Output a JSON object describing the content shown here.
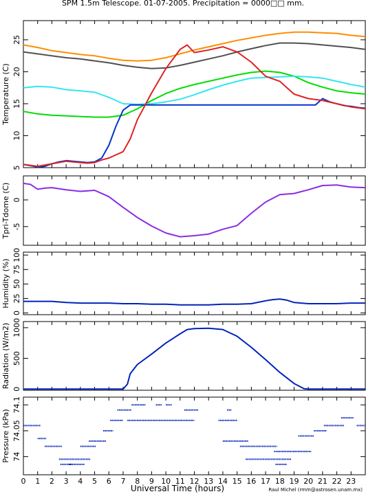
{
  "title": "SPM 1.5m Telescope. 01-07-2005. Precipitation = 0000□□ mm.",
  "credit": "Raul Michel (rmm@astrosen.unam.mx)",
  "xaxis": {
    "label": "Universal Time (hours)",
    "range": [
      0,
      24
    ],
    "ticks": [
      0,
      1,
      2,
      3,
      4,
      5,
      6,
      7,
      8,
      9,
      10,
      11,
      12,
      13,
      14,
      15,
      16,
      17,
      18,
      19,
      20,
      21,
      22,
      23
    ]
  },
  "chart_data": [
    {
      "type": "line",
      "ylabel": "Temperature (C)",
      "ylim": [
        5,
        28
      ],
      "yticks": [
        5,
        10,
        15,
        20,
        25
      ],
      "series": [
        {
          "color": "#ff8c00",
          "x": [
            0,
            1,
            2,
            3,
            4,
            5,
            6,
            7,
            8,
            9,
            10,
            11,
            12,
            13,
            14,
            15,
            16,
            17,
            18,
            19,
            20,
            21,
            22,
            23,
            24
          ],
          "y": [
            24.2,
            23.8,
            23.3,
            23.0,
            22.7,
            22.5,
            22.1,
            21.8,
            21.7,
            21.8,
            22.2,
            22.8,
            23.4,
            23.9,
            24.4,
            24.9,
            25.3,
            25.7,
            26.0,
            26.2,
            26.2,
            26.1,
            26.0,
            25.7,
            25.5
          ]
        },
        {
          "color": "#505050",
          "x": [
            0,
            1,
            2,
            3,
            4,
            5,
            6,
            7,
            8,
            9,
            10,
            11,
            12,
            13,
            14,
            15,
            16,
            17,
            18,
            19,
            20,
            21,
            22,
            23,
            24
          ],
          "y": [
            23.1,
            22.8,
            22.5,
            22.2,
            22.0,
            21.7,
            21.4,
            21.0,
            20.7,
            20.5,
            20.6,
            21.0,
            21.5,
            22.0,
            22.5,
            23.1,
            23.6,
            24.1,
            24.5,
            24.5,
            24.4,
            24.2,
            24.0,
            23.8,
            23.5
          ]
        },
        {
          "color": "#00dd00",
          "x": [
            0,
            1,
            2,
            3,
            4,
            5,
            6,
            7,
            8,
            9,
            10,
            11,
            12,
            13,
            14,
            15,
            16,
            17,
            18,
            19,
            20,
            21,
            22,
            23,
            24
          ],
          "y": [
            13.8,
            13.4,
            13.2,
            13.1,
            13.0,
            12.9,
            12.9,
            13.2,
            14.2,
            15.5,
            16.6,
            17.4,
            18.0,
            18.5,
            19.0,
            19.5,
            19.9,
            20.1,
            19.9,
            19.3,
            18.3,
            17.6,
            17.0,
            16.7,
            16.5
          ]
        },
        {
          "color": "#33e5f0",
          "x": [
            0,
            1,
            2,
            3,
            4,
            5,
            6,
            7,
            8,
            9,
            10,
            11,
            12,
            13,
            14,
            15,
            16,
            17,
            18,
            19,
            20,
            21,
            22,
            23,
            24
          ],
          "y": [
            17.5,
            17.7,
            17.6,
            17.2,
            17.0,
            16.8,
            16.0,
            15.0,
            14.9,
            15.0,
            15.3,
            15.7,
            16.4,
            17.2,
            17.9,
            18.5,
            19.0,
            19.1,
            19.2,
            19.3,
            19.2,
            19.0,
            18.5,
            18.0,
            17.6
          ]
        },
        {
          "color": "#0033cc",
          "x": [
            0,
            0.5,
            1,
            1.5,
            2,
            2.5,
            3,
            3.5,
            4,
            4.5,
            5,
            5.5,
            6,
            6.5,
            7,
            7.5,
            20.5,
            21,
            21.5,
            22,
            22.5,
            23,
            23.5,
            24
          ],
          "y": [
            5.5,
            5.3,
            5.1,
            5.2,
            5.6,
            5.9,
            6.1,
            6.0,
            5.9,
            5.8,
            5.9,
            6.5,
            8.5,
            11.5,
            14.0,
            14.8,
            14.8,
            15.8,
            15.3,
            15.0,
            14.7,
            14.6,
            14.4,
            14.3
          ]
        },
        {
          "color": "#dd2222",
          "x": [
            0,
            1,
            2,
            3,
            4,
            4.5,
            5,
            5.5,
            6,
            7,
            7.5,
            8,
            9,
            10,
            11,
            11.5,
            12,
            13,
            14,
            15,
            16,
            17,
            18,
            18.5,
            19,
            20,
            21,
            22,
            23,
            24
          ],
          "y": [
            5.5,
            5.2,
            5.6,
            6.0,
            5.8,
            5.7,
            5.8,
            6.2,
            6.5,
            7.5,
            9.5,
            12.5,
            16.7,
            20.5,
            23.5,
            24.2,
            23.0,
            23.4,
            23.9,
            23.1,
            21.5,
            19.3,
            18.5,
            17.5,
            16.5,
            15.8,
            15.5,
            15.0,
            14.5,
            14.2
          ]
        }
      ]
    },
    {
      "type": "line",
      "ylabel": "Tpri-Tdome (C)",
      "ylim": [
        -8.5,
        4.5
      ],
      "yticks": [
        -5,
        0
      ],
      "series": [
        {
          "color": "#8a2be2",
          "x": [
            0,
            0.5,
            1,
            1.5,
            2,
            3,
            4,
            5,
            5.5,
            6,
            7,
            8,
            9,
            10,
            11,
            12,
            13,
            14,
            15,
            16,
            17,
            18,
            19,
            20,
            21,
            22,
            23,
            24
          ],
          "y": [
            3.1,
            2.9,
            2.0,
            2.2,
            2.3,
            1.9,
            1.6,
            1.8,
            1.2,
            0.6,
            -1.4,
            -3.3,
            -4.9,
            -6.2,
            -6.9,
            -6.7,
            -6.4,
            -5.5,
            -4.8,
            -2.5,
            -0.4,
            1.0,
            1.2,
            1.9,
            2.7,
            2.8,
            2.4,
            2.3
          ]
        }
      ]
    },
    {
      "type": "line",
      "ylabel": "Humidity (%)",
      "ylim": [
        -3,
        105
      ],
      "yticks": [
        0,
        25,
        50,
        75,
        100
      ],
      "series": [
        {
          "color": "#0022bb",
          "x": [
            0,
            1,
            2,
            3,
            4,
            5,
            6,
            7,
            8,
            9,
            10,
            11,
            12,
            13,
            14,
            15,
            16,
            17,
            17.5,
            18,
            18.5,
            19,
            20,
            21,
            22,
            23,
            24
          ],
          "y": [
            20,
            20,
            20,
            18,
            17,
            17,
            17,
            16,
            16,
            15,
            15,
            14,
            14,
            14,
            15,
            15,
            16,
            21,
            23,
            24,
            22,
            18,
            16,
            16,
            16,
            17,
            17
          ]
        }
      ]
    },
    {
      "type": "line",
      "ylabel": "Radiation (W/m2)",
      "ylim": [
        -20,
        1100
      ],
      "yticks": [
        0,
        500,
        1000
      ],
      "series": [
        {
          "color": "#0022bb",
          "x": [
            0,
            7,
            7.3,
            7.5,
            8,
            9,
            10,
            11,
            11.5,
            12,
            13,
            14,
            15,
            16,
            17,
            18,
            19,
            19.7,
            20,
            24
          ],
          "y": [
            0,
            0,
            80,
            250,
            400,
            570,
            750,
            900,
            970,
            985,
            990,
            970,
            860,
            680,
            480,
            270,
            90,
            5,
            0,
            0
          ]
        }
      ]
    },
    {
      "type": "scatter",
      "ylabel": "Pressure (kPa)",
      "ylim": [
        73.965,
        74.115
      ],
      "yticks": [
        74,
        74.05,
        74.1
      ],
      "ytick_labels": [
        "74",
        "74.05",
        "74.1"
      ],
      "series": [
        {
          "color": "#0022bb",
          "segments": [
            [
              0.0,
              1.2,
              74.06
            ],
            [
              1.0,
              1.6,
              74.035
            ],
            [
              1.5,
              2.7,
              74.02
            ],
            [
              2.5,
              4.7,
              73.995
            ],
            [
              4.0,
              5.1,
              74.02
            ],
            [
              3.2,
              4.3,
              73.985
            ],
            [
              2.6,
              3.4,
              73.985
            ],
            [
              4.6,
              5.8,
              74.03
            ],
            [
              5.6,
              6.3,
              74.05
            ],
            [
              6.1,
              7.0,
              74.07
            ],
            [
              6.6,
              7.6,
              74.09
            ],
            [
              7.3,
              12.0,
              74.07
            ],
            [
              7.6,
              8.6,
              74.1
            ],
            [
              11.3,
              12.3,
              74.09
            ],
            [
              13.7,
              15.0,
              74.07
            ],
            [
              14.0,
              15.8,
              74.03
            ],
            [
              15.2,
              17.8,
              74.02
            ],
            [
              15.6,
              18.8,
              73.995
            ],
            [
              17.6,
              20.2,
              74.01
            ],
            [
              19.3,
              20.4,
              74.04
            ],
            [
              20.4,
              21.3,
              74.05
            ],
            [
              21.1,
              22.5,
              74.06
            ],
            [
              22.3,
              23.2,
              74.075
            ],
            [
              23.4,
              24.0,
              74.06
            ],
            [
              17.7,
              18.5,
              73.985
            ],
            [
              9.3,
              9.7,
              74.1
            ],
            [
              10.0,
              10.4,
              74.1
            ],
            [
              14.3,
              14.6,
              74.09
            ]
          ]
        }
      ]
    }
  ]
}
